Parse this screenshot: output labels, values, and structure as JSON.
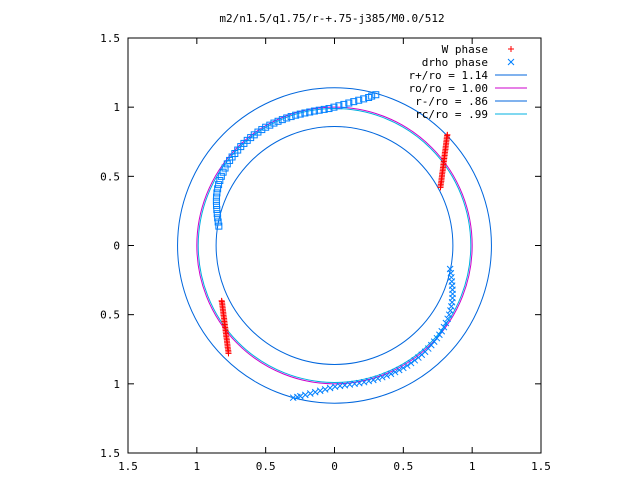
{
  "chart_data": {
    "type": "scatter",
    "title": "m2/n1.5/q1.75/r-+.75-j385/M0.0/512",
    "xlabel": "",
    "ylabel": "",
    "xlim": [
      -1.5,
      1.5
    ],
    "ylim": [
      -1.5,
      1.5
    ],
    "x_ticks": [
      -1.5,
      -1,
      -0.5,
      0,
      0.5,
      1,
      1.5
    ],
    "y_ticks": [
      -1.5,
      -1,
      -0.5,
      0,
      0.5,
      1,
      1.5
    ],
    "x_tick_labels": [
      "1.5",
      "1",
      "0.5",
      "0",
      "0.5",
      "1",
      "1.5"
    ],
    "y_tick_labels": [
      "1.5",
      "1",
      "0.5",
      "0",
      "0.5",
      "1",
      "1.5"
    ],
    "grid": false,
    "legend_position": "top-right",
    "series": [
      {
        "name": "W phase",
        "kind": "points",
        "marker": "plus",
        "color": "#ff0000",
        "x": [
          0.77,
          0.771,
          0.772,
          0.774,
          0.776,
          0.777,
          0.778,
          0.78,
          0.781,
          0.782,
          0.784,
          0.786,
          0.787,
          0.788,
          0.79,
          0.791,
          0.792,
          0.794,
          0.796,
          0.797,
          0.798,
          0.8,
          0.801,
          0.802,
          0.804,
          0.806,
          0.807,
          0.808,
          0.81,
          0.811,
          0.812,
          0.814,
          0.815,
          0.816,
          0.818,
          0.82,
          -0.77,
          -0.771,
          -0.772,
          -0.774,
          -0.776,
          -0.777,
          -0.778,
          -0.78,
          -0.781,
          -0.782,
          -0.784,
          -0.786,
          -0.787,
          -0.788,
          -0.79,
          -0.791,
          -0.792,
          -0.794,
          -0.796,
          -0.797,
          -0.798,
          -0.8,
          -0.801,
          -0.802,
          -0.804,
          -0.806,
          -0.807,
          -0.808,
          -0.81,
          -0.811,
          -0.812,
          -0.814,
          -0.815,
          -0.816,
          -0.818,
          -0.82
        ],
        "y": [
          0.42,
          0.431,
          0.442,
          0.453,
          0.464,
          0.475,
          0.486,
          0.497,
          0.508,
          0.519,
          0.53,
          0.541,
          0.552,
          0.563,
          0.574,
          0.585,
          0.596,
          0.607,
          0.618,
          0.629,
          0.64,
          0.651,
          0.662,
          0.673,
          0.684,
          0.695,
          0.706,
          0.717,
          0.728,
          0.739,
          0.75,
          0.761,
          0.772,
          0.783,
          0.794,
          0.8,
          -0.78,
          -0.769,
          -0.758,
          -0.747,
          -0.736,
          -0.725,
          -0.714,
          -0.703,
          -0.692,
          -0.681,
          -0.67,
          -0.659,
          -0.648,
          -0.637,
          -0.626,
          -0.615,
          -0.604,
          -0.593,
          -0.582,
          -0.571,
          -0.56,
          -0.549,
          -0.538,
          -0.527,
          -0.516,
          -0.505,
          -0.494,
          -0.483,
          -0.472,
          -0.461,
          -0.45,
          -0.439,
          -0.428,
          -0.417,
          -0.406,
          -0.4
        ]
      },
      {
        "name": "drho phase",
        "kind": "points",
        "marker": "x",
        "color": "#0080ff",
        "x": [
          0.84,
          0.845,
          0.849,
          0.852,
          0.855,
          0.857,
          0.858,
          0.857,
          0.854,
          0.849,
          0.842,
          0.833,
          0.822,
          0.809,
          0.795,
          0.779,
          0.762,
          0.744,
          0.724,
          0.703,
          0.681,
          0.658,
          0.634,
          0.609,
          0.583,
          0.556,
          0.528,
          0.5,
          0.47,
          0.44,
          0.41,
          0.379,
          0.347,
          0.315,
          0.282,
          0.249,
          0.215,
          0.18,
          0.146,
          0.111,
          0.075,
          0.04,
          0.004,
          -0.032,
          -0.068,
          -0.104,
          -0.14,
          -0.176,
          -0.212,
          -0.248,
          -0.27,
          -0.3
        ],
        "y": [
          -0.17,
          -0.2,
          -0.23,
          -0.26,
          -0.29,
          -0.32,
          -0.35,
          -0.38,
          -0.41,
          -0.44,
          -0.47,
          -0.5,
          -0.53,
          -0.56,
          -0.59,
          -0.62,
          -0.645,
          -0.67,
          -0.695,
          -0.72,
          -0.745,
          -0.768,
          -0.79,
          -0.81,
          -0.83,
          -0.85,
          -0.868,
          -0.885,
          -0.9,
          -0.915,
          -0.928,
          -0.94,
          -0.952,
          -0.962,
          -0.972,
          -0.98,
          -0.988,
          -0.995,
          -1.0,
          -1.005,
          -1.01,
          -1.015,
          -1.02,
          -1.03,
          -1.04,
          -1.05,
          -1.06,
          -1.07,
          -1.08,
          -1.09,
          -1.095,
          -1.1
        ]
      },
      {
        "name": "",
        "kind": "points",
        "marker": "square",
        "color": "#0080ff",
        "x": [
          -0.84,
          -0.845,
          -0.849,
          -0.852,
          -0.855,
          -0.857,
          -0.858,
          -0.857,
          -0.854,
          -0.849,
          -0.842,
          -0.833,
          -0.822,
          -0.809,
          -0.795,
          -0.779,
          -0.762,
          -0.744,
          -0.724,
          -0.703,
          -0.681,
          -0.658,
          -0.634,
          -0.609,
          -0.583,
          -0.556,
          -0.528,
          -0.5,
          -0.47,
          -0.44,
          -0.41,
          -0.379,
          -0.347,
          -0.315,
          -0.282,
          -0.249,
          -0.215,
          -0.18,
          -0.146,
          -0.111,
          -0.075,
          -0.04,
          -0.004,
          0.032,
          0.068,
          0.104,
          0.14,
          0.176,
          0.212,
          0.248,
          0.27,
          0.3
        ],
        "y": [
          0.14,
          0.17,
          0.2,
          0.23,
          0.26,
          0.29,
          0.32,
          0.35,
          0.38,
          0.41,
          0.44,
          0.47,
          0.5,
          0.53,
          0.56,
          0.59,
          0.615,
          0.64,
          0.665,
          0.69,
          0.715,
          0.738,
          0.76,
          0.78,
          0.8,
          0.82,
          0.838,
          0.855,
          0.87,
          0.885,
          0.898,
          0.91,
          0.922,
          0.932,
          0.942,
          0.95,
          0.958,
          0.965,
          0.972,
          0.978,
          0.984,
          0.99,
          1.0,
          1.01,
          1.02,
          1.03,
          1.04,
          1.05,
          1.06,
          1.07,
          1.08,
          1.09
        ]
      },
      {
        "name": "r+/ro = 1.14",
        "kind": "circle",
        "radius": 1.14,
        "color": "#0066dd"
      },
      {
        "name": "ro/ro = 1.00",
        "kind": "circle",
        "radius": 1.0,
        "color": "#cc00cc"
      },
      {
        "name": "r-/ro = .86",
        "kind": "circle",
        "radius": 0.86,
        "color": "#0066dd"
      },
      {
        "name": "rc/ro = .99",
        "kind": "circle",
        "radius": 0.99,
        "color": "#00b0e0"
      }
    ]
  }
}
